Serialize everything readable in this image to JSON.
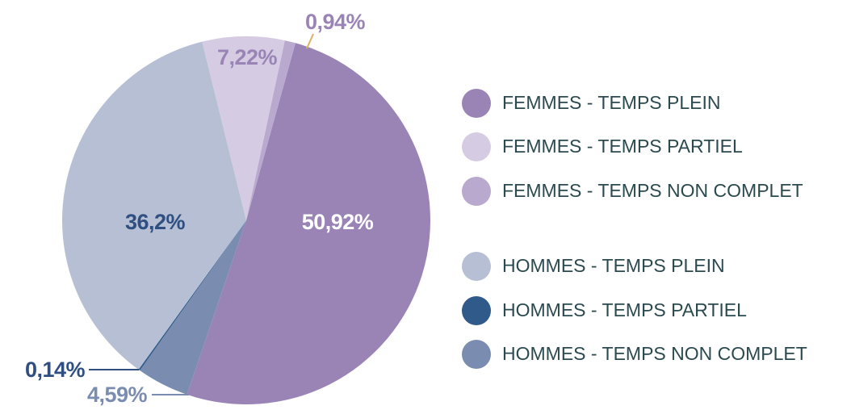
{
  "chart_data": {
    "type": "pie",
    "categories": [
      "FEMMES - TEMPS PLEIN",
      "FEMMES - TEMPS PARTIEL",
      "FEMMES - TEMPS NON COMPLET",
      "HOMMES - TEMPS PLEIN",
      "HOMMES - TEMPS PARTIEL",
      "HOMMES - TEMPS NON COMPLET"
    ],
    "values": [
      50.92,
      7.22,
      0.94,
      36.2,
      0.14,
      4.59
    ],
    "value_labels": [
      "50,92%",
      "7,22%",
      "0,94%",
      "36,2%",
      "0,14%",
      "4,59%"
    ],
    "colors": [
      "#9a84b6",
      "#d5cce3",
      "#b9a9cf",
      "#b6bfd4",
      "#2f5a8a",
      "#7a8db0"
    ],
    "legend": "right"
  }
}
